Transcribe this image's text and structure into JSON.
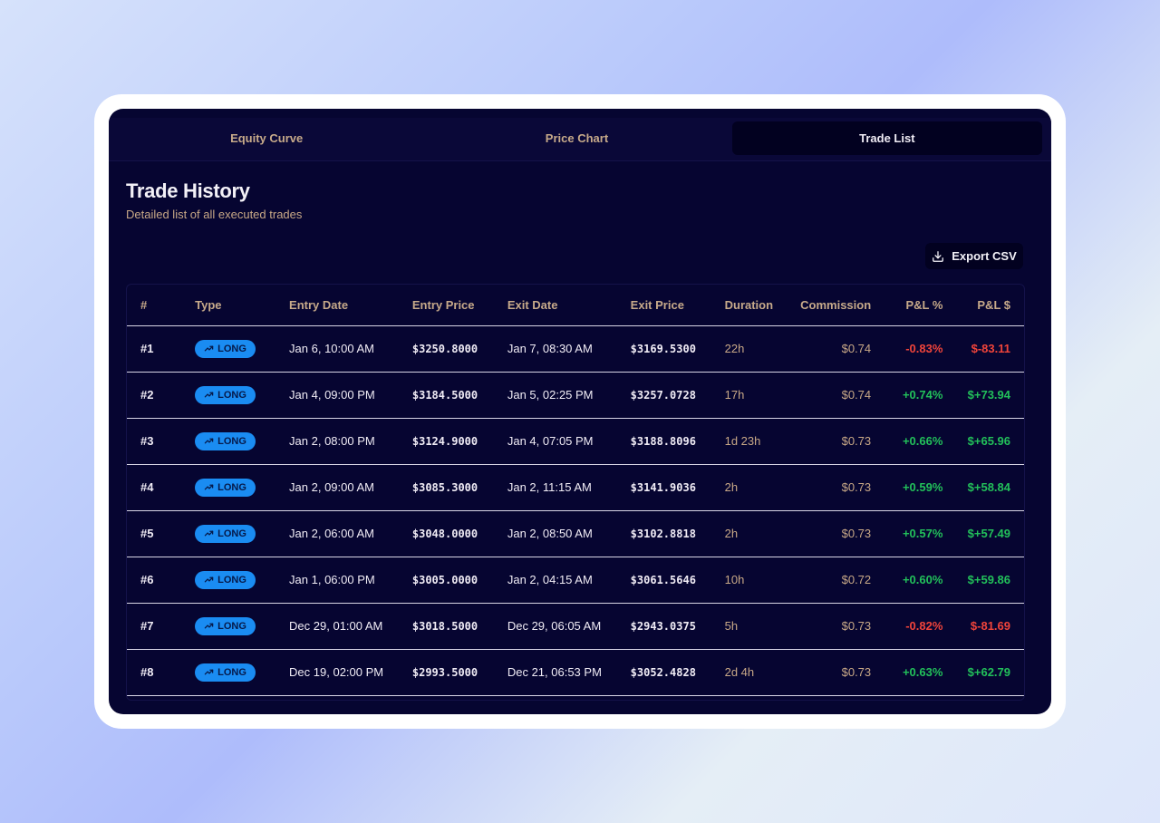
{
  "tabs": [
    {
      "label": "Equity Curve",
      "active": false
    },
    {
      "label": "Price Chart",
      "active": false
    },
    {
      "label": "Trade List",
      "active": true
    }
  ],
  "header": {
    "title": "Trade History",
    "subtitle": "Detailed list of all executed trades"
  },
  "export": {
    "label": "Export CSV",
    "icon": "download-icon"
  },
  "table": {
    "columns": [
      "#",
      "Type",
      "Entry Date",
      "Entry Price",
      "Exit Date",
      "Exit Price",
      "Duration",
      "Commission",
      "P&L %",
      "P&L $"
    ],
    "rows": [
      {
        "id": "#1",
        "type": "LONG",
        "entry_date": "Jan 6, 10:00 AM",
        "entry_price": "$3250.8000",
        "exit_date": "Jan 7, 08:30 AM",
        "exit_price": "$3169.5300",
        "duration": "22h",
        "commission": "$0.74",
        "pnl_pct": "-0.83%",
        "pnl_usd": "$-83.11",
        "positive": false
      },
      {
        "id": "#2",
        "type": "LONG",
        "entry_date": "Jan 4, 09:00 PM",
        "entry_price": "$3184.5000",
        "exit_date": "Jan 5, 02:25 PM",
        "exit_price": "$3257.0728",
        "duration": "17h",
        "commission": "$0.74",
        "pnl_pct": "+0.74%",
        "pnl_usd": "$+73.94",
        "positive": true
      },
      {
        "id": "#3",
        "type": "LONG",
        "entry_date": "Jan 2, 08:00 PM",
        "entry_price": "$3124.9000",
        "exit_date": "Jan 4, 07:05 PM",
        "exit_price": "$3188.8096",
        "duration": "1d 23h",
        "commission": "$0.73",
        "pnl_pct": "+0.66%",
        "pnl_usd": "$+65.96",
        "positive": true
      },
      {
        "id": "#4",
        "type": "LONG",
        "entry_date": "Jan 2, 09:00 AM",
        "entry_price": "$3085.3000",
        "exit_date": "Jan 2, 11:15 AM",
        "exit_price": "$3141.9036",
        "duration": "2h",
        "commission": "$0.73",
        "pnl_pct": "+0.59%",
        "pnl_usd": "$+58.84",
        "positive": true
      },
      {
        "id": "#5",
        "type": "LONG",
        "entry_date": "Jan 2, 06:00 AM",
        "entry_price": "$3048.0000",
        "exit_date": "Jan 2, 08:50 AM",
        "exit_price": "$3102.8818",
        "duration": "2h",
        "commission": "$0.73",
        "pnl_pct": "+0.57%",
        "pnl_usd": "$+57.49",
        "positive": true
      },
      {
        "id": "#6",
        "type": "LONG",
        "entry_date": "Jan 1, 06:00 PM",
        "entry_price": "$3005.0000",
        "exit_date": "Jan 2, 04:15 AM",
        "exit_price": "$3061.5646",
        "duration": "10h",
        "commission": "$0.72",
        "pnl_pct": "+0.60%",
        "pnl_usd": "$+59.86",
        "positive": true
      },
      {
        "id": "#7",
        "type": "LONG",
        "entry_date": "Dec 29, 01:00 AM",
        "entry_price": "$3018.5000",
        "exit_date": "Dec 29, 06:05 AM",
        "exit_price": "$2943.0375",
        "duration": "5h",
        "commission": "$0.73",
        "pnl_pct": "-0.82%",
        "pnl_usd": "$-81.69",
        "positive": false
      },
      {
        "id": "#8",
        "type": "LONG",
        "entry_date": "Dec 19, 02:00 PM",
        "entry_price": "$2993.5000",
        "exit_date": "Dec 21, 06:53 PM",
        "exit_price": "$3052.4828",
        "duration": "2d 4h",
        "commission": "$0.73",
        "pnl_pct": "+0.63%",
        "pnl_usd": "$+62.79",
        "positive": true
      }
    ]
  },
  "colors": {
    "positive": "#22c05a",
    "negative": "#f0443a",
    "badge": "#1a8cf2",
    "background": "#060531"
  }
}
